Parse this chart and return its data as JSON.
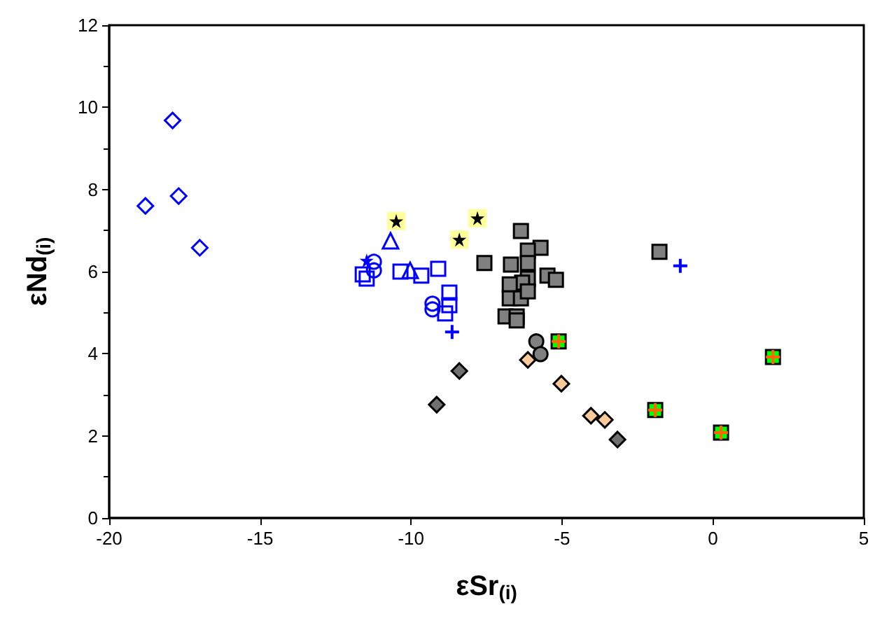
{
  "chart_data": {
    "type": "scatter",
    "xlabel": "εSr$_{(i)}$",
    "ylabel": "εNd$_{(i)}$",
    "xlim": [
      -20,
      5
    ],
    "xticks": [
      -20,
      -15,
      -10,
      -5,
      0,
      5
    ],
    "ylim": [
      0,
      12
    ],
    "yticks": [
      0,
      2,
      4,
      6,
      8,
      10,
      12
    ],
    "series": [
      {
        "marker": "diamond",
        "color": "#0000ff",
        "x": [
          -18.8,
          -17.9,
          -17.7,
          -17.0
        ],
        "values": [
          7.6,
          9.68,
          7.84,
          6.58
        ]
      },
      {
        "marker": "square",
        "color": "#0000ff",
        "x": [
          -11.6,
          -11.47,
          -10.35,
          -9.66,
          -9.1,
          -8.73,
          -8.73,
          -8.87
        ],
        "values": [
          5.93,
          5.83,
          6.0,
          5.9,
          6.07,
          5.49,
          5.18,
          4.98
        ]
      },
      {
        "marker": "circle",
        "color": "#0000ff",
        "x": [
          -11.23,
          -11.23,
          -9.29,
          -9.29
        ],
        "values": [
          6.03,
          6.24,
          5.22,
          5.08
        ]
      },
      {
        "marker": "triangle",
        "color": "#0000ff",
        "x": [
          -10.68,
          -10.03
        ],
        "values": [
          6.75,
          6.03
        ]
      },
      {
        "marker": "cross",
        "color": "#0000ff",
        "x": [
          -8.64
        ],
        "values": [
          4.53
        ]
      },
      {
        "marker": "star",
        "color": "#0000ff",
        "x": [
          -11.47
        ],
        "values": [
          6.27
        ]
      },
      {
        "marker": "cross",
        "color": "#0000ff",
        "x": [
          -1.08
        ],
        "values": [
          6.14
        ]
      },
      {
        "marker": "square",
        "color": "#ffff99",
        "x": [
          -10.49,
          -7.8,
          -8.4
        ],
        "values": [
          7.23,
          7.3,
          6.78
        ]
      },
      {
        "marker": "star",
        "color": "#000000",
        "x": [
          -10.49,
          -7.8,
          -8.4
        ],
        "values": [
          7.23,
          7.3,
          6.78
        ]
      },
      {
        "marker": "square",
        "color": "#808080",
        "x": [
          -6.36,
          -5.71,
          -6.13,
          -6.13,
          -7.57,
          -6.69,
          -5.48,
          -5.2,
          -6.13,
          -6.32,
          -6.73,
          -6.73,
          -6.36,
          -6.13,
          -6.87,
          -6.5,
          -6.5,
          -1.77
        ],
        "values": [
          6.99,
          6.58,
          6.51,
          6.21,
          6.21,
          6.17,
          5.9,
          5.8,
          5.83,
          5.73,
          5.69,
          5.35,
          5.35,
          5.52,
          4.91,
          4.91,
          4.81,
          6.48
        ]
      },
      {
        "marker": "circle",
        "color": "#808080",
        "x": [
          -5.85,
          -5.71
        ],
        "values": [
          4.3,
          3.99
        ]
      },
      {
        "marker": "diamond",
        "color": "#707070",
        "x": [
          -8.4,
          -9.15,
          -3.16
        ],
        "values": [
          3.58,
          2.76,
          1.91
        ]
      },
      {
        "marker": "diamond",
        "color": "#fcc99b",
        "x": [
          -6.13,
          -5.02,
          -4.04,
          -3.58
        ],
        "values": [
          3.85,
          3.27,
          2.49,
          2.39
        ]
      },
      {
        "marker": "square",
        "color": "#00ff00",
        "x": [
          -5.11,
          -1.91,
          0.27,
          1.99
        ],
        "values": [
          4.3,
          2.63,
          2.08,
          3.92
        ]
      },
      {
        "marker": "cross",
        "color": "#ff6600",
        "x": [
          -5.11,
          -1.91,
          0.27,
          1.99
        ],
        "values": [
          4.3,
          2.63,
          2.08,
          3.92
        ]
      }
    ]
  }
}
